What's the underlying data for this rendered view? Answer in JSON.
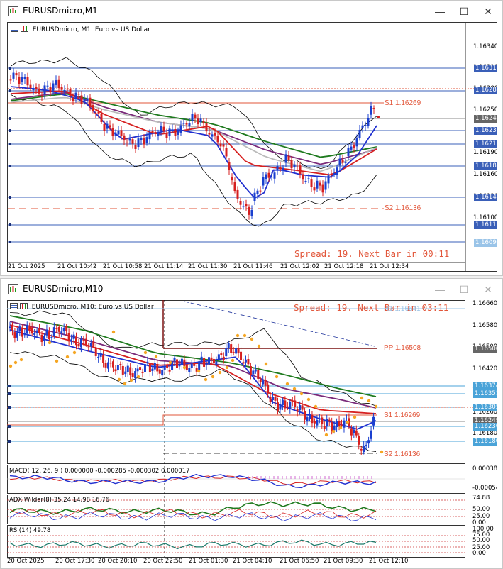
{
  "top_window": {
    "title": "EURUSDmicro,M1",
    "chart_label": "EURUSDmicro, M1:  Euro vs US Dollar",
    "spread_text": "Spread: 19. Next Bar in 00:11",
    "s1_label": "S1 1.16269",
    "s2_label": "S2 1.16136",
    "price_axis": [
      "1.16340",
      "1.16310",
      "1.16280",
      "1.16250",
      "1.16220",
      "1.16190",
      "1.16160",
      "1.16130",
      "1.16100"
    ],
    "price_tags": [
      {
        "text": "1.16312",
        "color": "#3a5fb8"
      },
      {
        "text": "1.16286",
        "color": "#3a5fb8"
      },
      {
        "text": "1.16249",
        "color": "#666666"
      },
      {
        "text": "1.16235",
        "color": "#3a5fb8"
      },
      {
        "text": "1.16216",
        "color": "#3a5fb8"
      },
      {
        "text": "1.16189",
        "color": "#3a5fb8"
      },
      {
        "text": "1.16149",
        "color": "#3a5fb8"
      },
      {
        "text": "1.16115",
        "color": "#3a5fb8"
      },
      {
        "text": "1.16092",
        "color": "#9ac4e8"
      }
    ],
    "time_axis": [
      "21 Oct 2025",
      "21 Oct 10:42",
      "21 Oct 10:58",
      "21 Oct 11:14",
      "21 Oct 11:30",
      "21 Oct 11:46",
      "21 Oct 12:02",
      "21 Oct 12:18",
      "21 Oct 12:34"
    ]
  },
  "bottom_window": {
    "title": "EURUSDmicro,M10",
    "chart_label": "EURUSDmicro, M10:  Euro vs US Dollar",
    "spread_text": "Spread: 19. Next Bar in 03:11",
    "r1_label": "R1 1.16641",
    "pp_label": "PP 1.16508",
    "s1_label": "S1 1.16269",
    "s2_label": "S2 1.16136",
    "price_axis": [
      "1.16660",
      "1.16580",
      "1.16500",
      "1.16420",
      "1.16340",
      "1.16260",
      "1.16180"
    ],
    "price_tags": [
      {
        "text": "1.16500",
        "color": "#666666"
      },
      {
        "text": "1.16374",
        "color": "#4aa3d8"
      },
      {
        "text": "1.16351",
        "color": "#4aa3d8"
      },
      {
        "text": "1.16305",
        "color": "#4aa3d8"
      },
      {
        "text": "1.16249",
        "color": "#666666"
      },
      {
        "text": "1.16236",
        "color": "#4aa3d8"
      },
      {
        "text": "1.16180",
        "color": "#4aa3d8"
      }
    ],
    "macd": {
      "label": "MACD( 12, 26, 9 ) 0.000000 -0.000285 -0.000302 0.000017",
      "axis": [
        "0.000387",
        "-0.000542"
      ]
    },
    "adx": {
      "label": "ADX Wilder(8) 35.24 14.98 16.76",
      "axis": [
        "74.88",
        "50.00",
        "25.00",
        "0.00"
      ]
    },
    "rsi": {
      "label": "RSI(14) 49.78",
      "axis": [
        "100.00",
        "75.00",
        "50.00",
        "25.00",
        "0.00"
      ]
    },
    "time_axis": [
      "20 Oct 2025",
      "20 Oct 17:30",
      "20 Oct 20:10",
      "20 Oct 22:50",
      "21 Oct 01:30",
      "21 Oct 04:10",
      "21 Oct 06:50",
      "21 Oct 09:30",
      "21 Oct 12:10"
    ]
  },
  "buttons": {
    "minimize": "—",
    "maximize": "☐",
    "close": "✕"
  },
  "colors": {
    "bull": "#1a3fcf",
    "bear": "#d61f1f",
    "level_orange": "#e2563a",
    "pp_line": "#7a1010",
    "ma_green": "#1e7a1e",
    "ma_purple": "#7a2a7a",
    "ma_red": "#d62020",
    "ma_blue": "#2030d0",
    "ma_gray": "#aaaaaa",
    "sar": "#f5a623"
  }
}
